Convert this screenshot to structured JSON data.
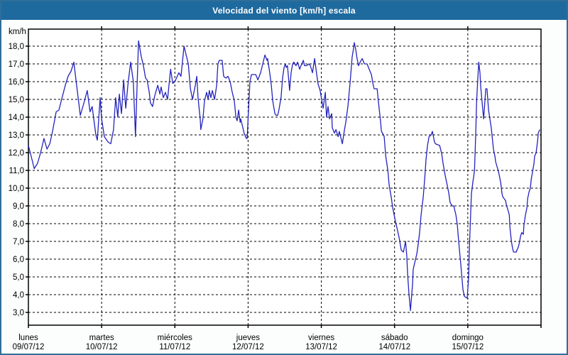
{
  "title": "Velocidad del viento [km/h] escala",
  "colors": {
    "title_bar": "#1e6a9f",
    "window_border": "#2e6f99",
    "background": "#fcfdfd",
    "plot_background": "#ffffff",
    "grid": "#000000",
    "axis_text": "#000000",
    "line": "#2323bd",
    "title_text": "#ffffff"
  },
  "y_axis": {
    "unit_label": "km/h",
    "tick_labels": [
      "18,0",
      "17,0",
      "16,0",
      "15,0",
      "14,0",
      "13,0",
      "12,0",
      "11,0",
      "10,0",
      "9,0",
      "8,0",
      "7,0",
      "6,0",
      "5,0",
      "4,0",
      "3,0"
    ],
    "tick_values": [
      18,
      17,
      16,
      15,
      14,
      13,
      12,
      11,
      10,
      9,
      8,
      7,
      6,
      5,
      4,
      3
    ]
  },
  "x_axis": {
    "days": [
      {
        "name": "lunes",
        "date": "09/07/12"
      },
      {
        "name": "martes",
        "date": "10/07/12"
      },
      {
        "name": "miércoles",
        "date": "11/07/12"
      },
      {
        "name": "jueves",
        "date": "12/07/12"
      },
      {
        "name": "viernes",
        "date": "13/07/12"
      },
      {
        "name": "sábado",
        "date": "14/07/12"
      },
      {
        "name": "domingo",
        "date": "15/07/12"
      }
    ]
  },
  "chart_data": {
    "type": "line",
    "title": "Velocidad del viento [km/h] escala",
    "ylabel": "km/h",
    "ylim": [
      3,
      18
    ],
    "x_range_hours": [
      0,
      168
    ],
    "grid": "dashed",
    "legend": "none",
    "x_tick_days": [
      "lunes 09/07/12",
      "martes 10/07/12",
      "miércoles 11/07/12",
      "jueves 12/07/12",
      "viernes 13/07/12",
      "sábado 14/07/12",
      "domingo 15/07/12"
    ],
    "series": [
      {
        "name": "Velocidad del viento",
        "unit": "km/h",
        "points": [
          [
            0,
            12.4
          ],
          [
            0.9,
            11.8
          ],
          [
            1.9,
            11.1
          ],
          [
            3,
            11.4
          ],
          [
            4,
            12
          ],
          [
            5.1,
            12.8
          ],
          [
            6.1,
            12.2
          ],
          [
            7,
            12.5
          ],
          [
            7.9,
            13.2
          ],
          [
            9.1,
            14.3
          ],
          [
            10,
            14.4
          ],
          [
            10.9,
            15
          ],
          [
            12.1,
            15.8
          ],
          [
            13,
            16.3
          ],
          [
            14,
            16.6
          ],
          [
            14.9,
            17.1
          ],
          [
            15.8,
            15.8
          ],
          [
            17,
            14.1
          ],
          [
            18.2,
            14.8
          ],
          [
            19.3,
            15.5
          ],
          [
            20.2,
            14.3
          ],
          [
            20.9,
            14.6
          ],
          [
            22.1,
            13
          ],
          [
            22.6,
            12.7
          ],
          [
            23.5,
            15.1
          ],
          [
            24,
            13.9
          ],
          [
            24.9,
            12.9
          ],
          [
            26.1,
            12.6
          ],
          [
            27,
            12.5
          ],
          [
            27.9,
            13.3
          ],
          [
            28.6,
            15.1
          ],
          [
            29.3,
            14
          ],
          [
            29.8,
            15.3
          ],
          [
            30.5,
            14.2
          ],
          [
            31.2,
            16.1
          ],
          [
            31.9,
            14.5
          ],
          [
            32.6,
            15.8
          ],
          [
            33.5,
            17.1
          ],
          [
            34.4,
            16
          ],
          [
            35.1,
            12.9
          ],
          [
            36.1,
            18.3
          ],
          [
            37,
            17.4
          ],
          [
            37.7,
            16.9
          ],
          [
            38.4,
            16.2
          ],
          [
            38.9,
            16.1
          ],
          [
            39.6,
            15.4
          ],
          [
            40,
            14.8
          ],
          [
            40.7,
            14.6
          ],
          [
            41.4,
            15.2
          ],
          [
            42.4,
            15.8
          ],
          [
            43.1,
            15.3
          ],
          [
            43.5,
            15.7
          ],
          [
            44.2,
            15.1
          ],
          [
            44.9,
            15.4
          ],
          [
            45.6,
            15
          ],
          [
            46.6,
            16.7
          ],
          [
            47.3,
            15.9
          ],
          [
            48,
            16
          ],
          [
            49.3,
            16.5
          ],
          [
            50,
            16.3
          ],
          [
            51,
            18
          ],
          [
            51.7,
            17.5
          ],
          [
            52.4,
            17
          ],
          [
            53.1,
            15.6
          ],
          [
            53.8,
            15
          ],
          [
            54.7,
            15.8
          ],
          [
            55.2,
            16.3
          ],
          [
            55.6,
            15.1
          ],
          [
            56.3,
            13.9
          ],
          [
            56.5,
            13.3
          ],
          [
            57.2,
            13.9
          ],
          [
            57.7,
            14.9
          ],
          [
            58.4,
            15.4
          ],
          [
            58.9,
            15
          ],
          [
            59.3,
            15.5
          ],
          [
            59.8,
            15.1
          ],
          [
            60.3,
            15.5
          ],
          [
            61,
            15
          ],
          [
            61.7,
            15.8
          ],
          [
            62.1,
            17
          ],
          [
            62.6,
            17.2
          ],
          [
            63.5,
            17.2
          ],
          [
            64,
            16.3
          ],
          [
            64.7,
            16.2
          ],
          [
            65.4,
            16.3
          ],
          [
            66.1,
            16
          ],
          [
            66.8,
            15.4
          ],
          [
            67.5,
            14.9
          ],
          [
            68,
            14
          ],
          [
            68.4,
            13.8
          ],
          [
            68.9,
            14.4
          ],
          [
            69.4,
            13.7
          ],
          [
            69.6,
            13.9
          ],
          [
            70.3,
            13.4
          ],
          [
            70.7,
            13.1
          ],
          [
            71.4,
            12.8
          ],
          [
            71.7,
            12.8
          ],
          [
            72.1,
            14.3
          ],
          [
            72.6,
            16
          ],
          [
            73.1,
            16.4
          ],
          [
            73.8,
            16.4
          ],
          [
            74.5,
            16.4
          ],
          [
            75.2,
            16.1
          ],
          [
            76.1,
            16.5
          ],
          [
            76.8,
            17
          ],
          [
            77.5,
            17.5
          ],
          [
            78.2,
            17.2
          ],
          [
            78.4,
            17.3
          ],
          [
            79.1,
            16.5
          ],
          [
            79.6,
            15.8
          ],
          [
            80.1,
            14.9
          ],
          [
            80.8,
            14.2
          ],
          [
            81.2,
            14.1
          ],
          [
            81.7,
            14.1
          ],
          [
            82.1,
            14.4
          ],
          [
            82.8,
            15.1
          ],
          [
            83.3,
            16.2
          ],
          [
            83.8,
            16.8
          ],
          [
            84.2,
            17
          ],
          [
            84.5,
            16.8
          ],
          [
            84.9,
            16.9
          ],
          [
            85.6,
            15.5
          ],
          [
            86.1,
            16.5
          ],
          [
            86.6,
            17
          ],
          [
            87,
            17.1
          ],
          [
            87.7,
            16.9
          ],
          [
            88.2,
            17.1
          ],
          [
            88.9,
            16.7
          ],
          [
            89.1,
            16.8
          ],
          [
            90.1,
            17.2
          ],
          [
            90.5,
            16.9
          ],
          [
            91.2,
            16.9
          ],
          [
            91.9,
            17
          ],
          [
            92.4,
            16.9
          ],
          [
            93.1,
            16.5
          ],
          [
            93.8,
            17.3
          ],
          [
            94.5,
            16.4
          ],
          [
            94.9,
            15.9
          ],
          [
            95.6,
            15.5
          ],
          [
            96.1,
            15
          ],
          [
            96.6,
            14.5
          ],
          [
            97.3,
            15.4
          ],
          [
            97.7,
            14
          ],
          [
            98.2,
            14.6
          ],
          [
            98.7,
            13.9
          ],
          [
            99.4,
            14.2
          ],
          [
            99.6,
            13.4
          ],
          [
            100.3,
            13.1
          ],
          [
            100.8,
            13.3
          ],
          [
            101.5,
            12.9
          ],
          [
            101.9,
            13.2
          ],
          [
            102.9,
            12.5
          ],
          [
            103.6,
            13.3
          ],
          [
            104,
            13.7
          ],
          [
            104.7,
            14.6
          ],
          [
            105.4,
            15.9
          ],
          [
            106.1,
            17.4
          ],
          [
            106.6,
            17.9
          ],
          [
            106.8,
            18.2
          ],
          [
            107.3,
            17.8
          ],
          [
            107.7,
            17.3
          ],
          [
            108.2,
            16.9
          ],
          [
            108.7,
            17.1
          ],
          [
            109.4,
            17.3
          ],
          [
            110.1,
            17
          ],
          [
            111,
            17
          ],
          [
            111.7,
            16.7
          ],
          [
            112.4,
            16.4
          ],
          [
            112.9,
            15.9
          ],
          [
            113.3,
            15.6
          ],
          [
            114.3,
            15.6
          ],
          [
            114.7,
            14.9
          ],
          [
            115.4,
            13.8
          ],
          [
            115.7,
            13.2
          ],
          [
            116.4,
            13
          ],
          [
            116.6,
            12.9
          ],
          [
            117.1,
            11.8
          ],
          [
            117.8,
            11
          ],
          [
            118.2,
            10.2
          ],
          [
            118.9,
            9.5
          ],
          [
            119.4,
            8.9
          ],
          [
            120.1,
            8.3
          ],
          [
            120.6,
            7.9
          ],
          [
            121,
            7.6
          ],
          [
            121.5,
            7.2
          ],
          [
            122.2,
            6.5
          ],
          [
            122.9,
            6.4
          ],
          [
            123.6,
            7
          ],
          [
            124,
            6.2
          ],
          [
            124.3,
            5.1
          ],
          [
            124.7,
            4.1
          ],
          [
            125.2,
            3.1
          ],
          [
            125.9,
            4.6
          ],
          [
            126.1,
            5.4
          ],
          [
            126.6,
            5.8
          ],
          [
            127.3,
            6.3
          ],
          [
            127.8,
            6.9
          ],
          [
            128.2,
            7.5
          ],
          [
            128.7,
            8.5
          ],
          [
            129.4,
            9.5
          ],
          [
            129.9,
            10.6
          ],
          [
            130.3,
            11.6
          ],
          [
            130.8,
            12.4
          ],
          [
            131.3,
            12.9
          ],
          [
            132,
            13
          ],
          [
            132.4,
            13.2
          ],
          [
            133.1,
            12.6
          ],
          [
            133.4,
            12.5
          ],
          [
            134.8,
            12.4
          ],
          [
            135.5,
            11.9
          ],
          [
            135.9,
            11.4
          ],
          [
            136.6,
            10.7
          ],
          [
            137.1,
            10.3
          ],
          [
            137.8,
            9.7
          ],
          [
            138.2,
            9.2
          ],
          [
            138.9,
            9
          ],
          [
            139.4,
            9
          ],
          [
            140.1,
            8.5
          ],
          [
            140.6,
            7.9
          ],
          [
            141,
            7
          ],
          [
            141.5,
            6.1
          ],
          [
            142,
            5.1
          ],
          [
            142.4,
            4.3
          ],
          [
            142.9,
            3.9
          ],
          [
            143.8,
            3.8
          ],
          [
            144.3,
            5
          ],
          [
            144.5,
            6.5
          ],
          [
            144.8,
            7.9
          ],
          [
            145,
            8.9
          ],
          [
            145.2,
            9.7
          ],
          [
            145.7,
            10.4
          ],
          [
            145.9,
            10.6
          ],
          [
            146.2,
            11
          ],
          [
            146.6,
            13
          ],
          [
            146.9,
            14.9
          ],
          [
            147.3,
            16.2
          ],
          [
            147.6,
            17.1
          ],
          [
            148,
            16.5
          ],
          [
            148.2,
            15.8
          ],
          [
            148.7,
            14.8
          ],
          [
            149.2,
            13.9
          ],
          [
            149.9,
            15.6
          ],
          [
            150.3,
            15.6
          ],
          [
            150.8,
            14.4
          ],
          [
            151.7,
            13.4
          ],
          [
            152,
            12.9
          ],
          [
            152.4,
            12.2
          ],
          [
            152.9,
            11.8
          ],
          [
            153.1,
            11.5
          ],
          [
            154.1,
            10.9
          ],
          [
            154.8,
            10.3
          ],
          [
            155.2,
            9.7
          ],
          [
            155.5,
            9.5
          ],
          [
            156.4,
            9.3
          ],
          [
            156.6,
            9.1
          ],
          [
            157.6,
            8.5
          ],
          [
            157.8,
            7.8
          ],
          [
            158.3,
            7
          ],
          [
            158.7,
            6.6
          ],
          [
            159,
            6.4
          ],
          [
            159.9,
            6.4
          ],
          [
            160.1,
            6.5
          ],
          [
            160.6,
            6.7
          ],
          [
            161,
            7
          ],
          [
            161.3,
            7.3
          ],
          [
            161.7,
            7.5
          ],
          [
            162.2,
            7.4
          ],
          [
            162.4,
            7.9
          ],
          [
            162.9,
            8.5
          ],
          [
            163.4,
            8.9
          ],
          [
            163.6,
            9.4
          ],
          [
            164.1,
            9.8
          ],
          [
            164.5,
            10
          ],
          [
            164.8,
            10.5
          ],
          [
            165.2,
            10.9
          ],
          [
            165.7,
            11.4
          ],
          [
            165.9,
            11.8
          ],
          [
            166.4,
            12
          ],
          [
            166.9,
            12.7
          ],
          [
            167.1,
            13.1
          ],
          [
            167.6,
            13.3
          ]
        ]
      }
    ]
  }
}
